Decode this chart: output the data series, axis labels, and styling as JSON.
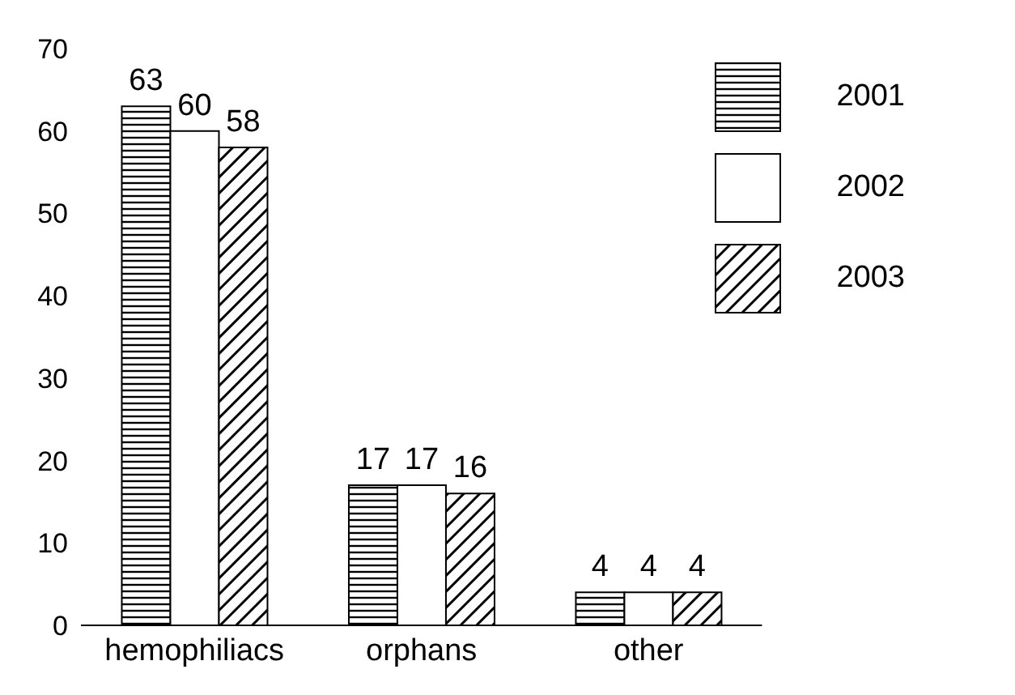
{
  "chart_data": {
    "type": "bar",
    "categories": [
      "hemophiliacs",
      "orphans",
      "other"
    ],
    "series": [
      {
        "name": "2001",
        "color": "#000000",
        "values": [
          63,
          17,
          4
        ]
      },
      {
        "name": "2002",
        "color": "#ffffff",
        "values": [
          60,
          17,
          4
        ]
      },
      {
        "name": "2003",
        "color": "#000000",
        "values": [
          58,
          16,
          4
        ]
      }
    ],
    "ylim": [
      0,
      70
    ],
    "yticks": [
      0,
      10,
      20,
      30,
      40,
      50,
      60,
      70
    ],
    "data_labels": true,
    "legend": "top right",
    "grid": false
  }
}
